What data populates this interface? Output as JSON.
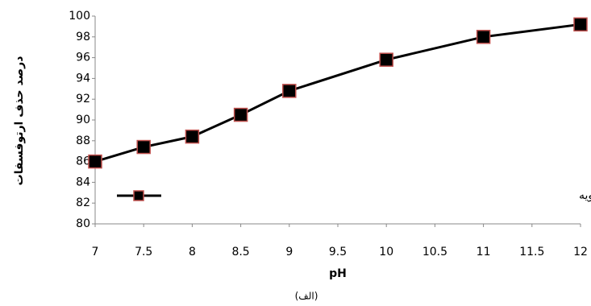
{
  "chart_data": {
    "type": "line",
    "x": [
      7,
      7.5,
      8,
      8.5,
      9,
      10,
      11,
      12
    ],
    "series": [
      {
        "name": "میانگین درصد حذف ارتوفسفات در ورودی به حوضچه ته نشینی ثانویه",
        "color": "#000000",
        "marker_edge_color": "#c0504d",
        "values": [
          86,
          87.4,
          88.4,
          90.5,
          92.8,
          95.8,
          98,
          99.2
        ]
      }
    ],
    "xlabel": "pH",
    "ylabel": "درصد حذف ارتوفسفات",
    "caption": "(الف)",
    "xlim": [
      7,
      12
    ],
    "xticks": [
      7,
      7.5,
      8,
      8.5,
      9,
      9.5,
      10,
      10.5,
      11,
      11.5,
      12
    ],
    "ylim": [
      80,
      100
    ],
    "yticks": [
      80,
      82,
      84,
      86,
      88,
      90,
      92,
      94,
      96,
      98,
      100
    ],
    "grid": false,
    "legend": "lower right"
  }
}
